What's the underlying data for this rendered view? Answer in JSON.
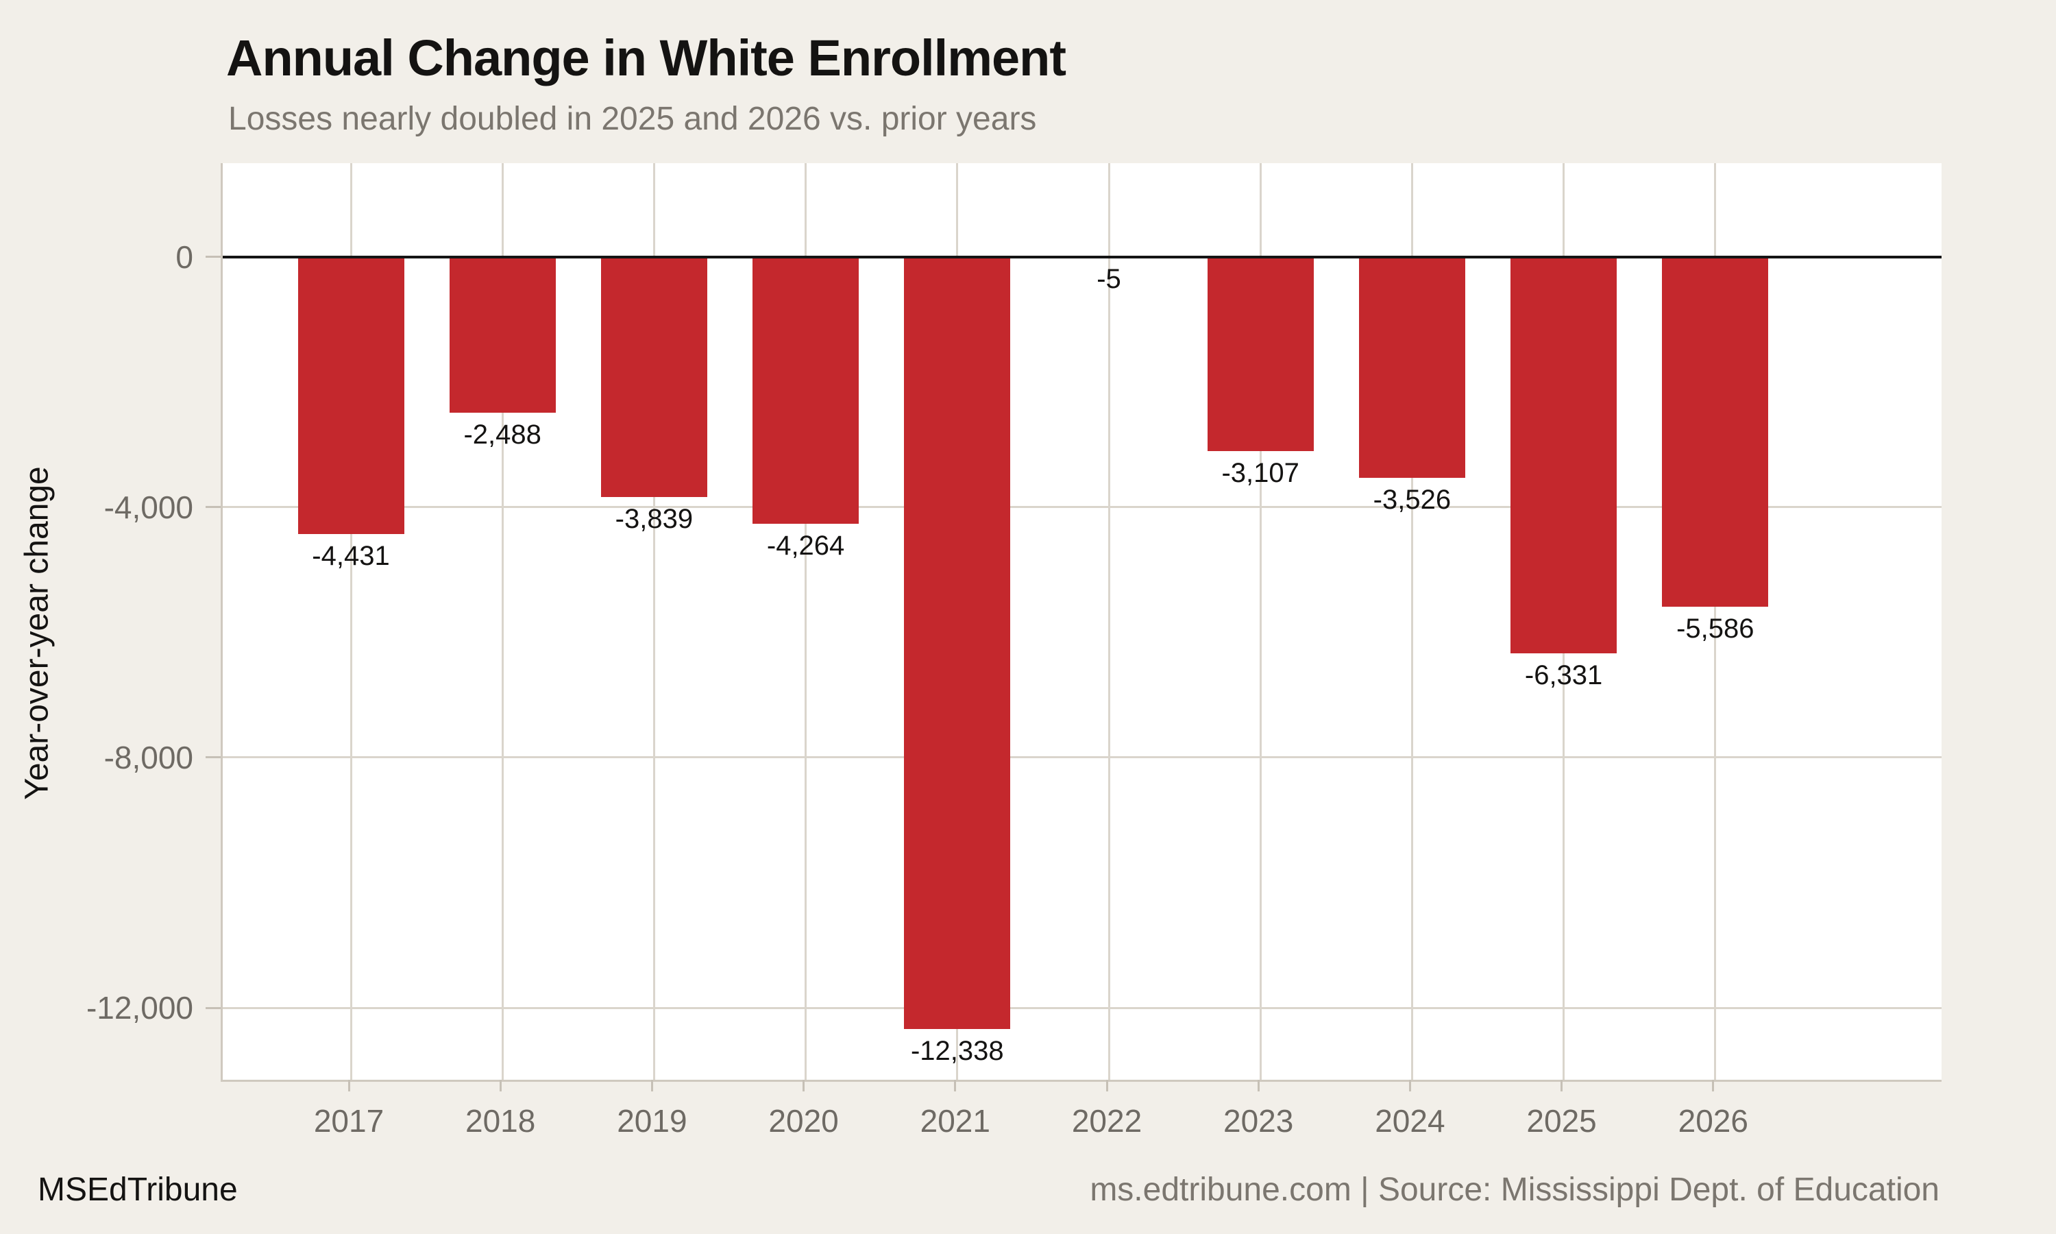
{
  "header": {
    "title": "Annual Change in White Enrollment",
    "subtitle": "Losses nearly doubled in 2025 and 2026 vs. prior years"
  },
  "footer": {
    "brand": "MSEdTribune",
    "source": "ms.edtribune.com | Source: Mississippi Dept. of Education"
  },
  "chart_data": {
    "type": "bar",
    "title": "Annual Change in White Enrollment",
    "subtitle": "Losses nearly doubled in 2025 and 2026 vs. prior years",
    "xlabel": "",
    "ylabel": "Year-over-year change",
    "categories": [
      "2017",
      "2018",
      "2019",
      "2020",
      "2021",
      "2022",
      "2023",
      "2024",
      "2025",
      "2026"
    ],
    "values": [
      -4431,
      -2488,
      -3839,
      -4264,
      -12338,
      -5,
      -3107,
      -3526,
      -6331,
      -5586
    ],
    "value_labels": [
      "-4,431",
      "-2,488",
      "-3,839",
      "-4,264",
      "-12,338",
      "-5",
      "-3,107",
      "-3,526",
      "-6,331",
      "-5,586"
    ],
    "yticks": [
      {
        "value": 0,
        "label": "0"
      },
      {
        "value": -4000,
        "label": "-4,000"
      },
      {
        "value": -8000,
        "label": "-8,000"
      },
      {
        "value": -12000,
        "label": "-12,000"
      }
    ],
    "ylim": [
      1500,
      -13150
    ],
    "grid": true,
    "legend_position": "none",
    "colors": {
      "bar": "#c4282d",
      "background": "#f2efe9",
      "panel": "#ffffff",
      "grid": "#dad5cc",
      "spine": "#cfc9bf",
      "tick_mark": "#c6c0b6",
      "zero_line": "#151515",
      "tick_text": "#6e6a64",
      "subtitle_text": "#7b766f",
      "title_text": "#141312",
      "value_text": "#141312"
    }
  }
}
